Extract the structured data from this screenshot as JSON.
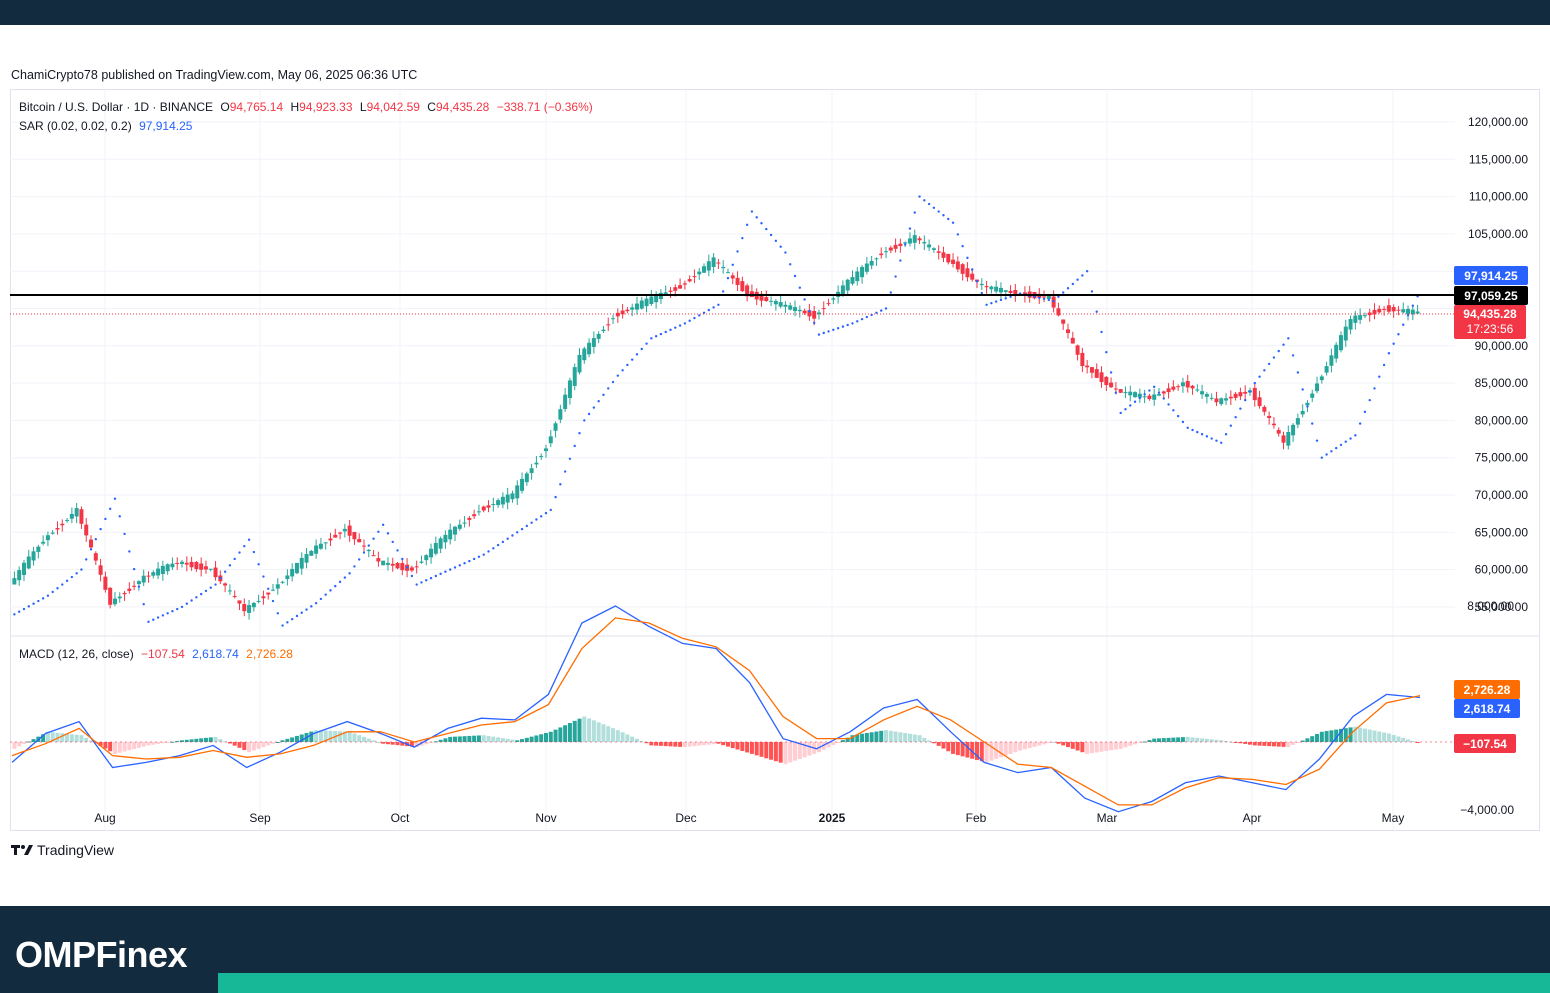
{
  "publisher": "ChamiCrypto78 published on TradingView.com, May 06, 2025 06:36 UTC",
  "brand": {
    "logo_text": "OMPFinex",
    "tv_text": "TradingView"
  },
  "colors": {
    "up": "#26a69a",
    "down": "#f23645",
    "sar": "#2962ff",
    "macd": "#2962ff",
    "signal": "#ff6d00",
    "hline": "#000000",
    "footer": "#132b3f",
    "accent": "#17b897"
  },
  "legend": {
    "symbol": "Bitcoin / U.S. Dollar · 1D · BINANCE",
    "open_label": "O",
    "open": "94,765.14",
    "high_label": "H",
    "high": "94,923.33",
    "low_label": "L",
    "low": "94,042.59",
    "close_label": "C",
    "close": "94,435.28",
    "change": "−338.71 (−0.36%)",
    "sar_name": "SAR (0.02, 0.02, 0.2)",
    "sar_value": "97,914.25",
    "macd_name": "MACD (12, 26, close)",
    "macd_hist": "−107.54",
    "macd_line": "2,618.74",
    "macd_signal": "2,726.28"
  },
  "price_axis": [
    "120,000.00",
    "115,000.00",
    "110,000.00",
    "105,000.00",
    "90,000.00",
    "85,000.00",
    "80,000.00",
    "75,000.00",
    "70,000.00",
    "65,000.00",
    "60,000.00",
    "55,000.00"
  ],
  "macd_axis": [
    "8,000.00",
    "−4,000.00"
  ],
  "price_labels": {
    "sar": "97,914.25",
    "level": "97,059.25",
    "last": "94,435.28",
    "countdown": "17:23:56"
  },
  "macd_labels": {
    "signal": "2,726.28",
    "macd": "2,618.74",
    "hist": "−107.54"
  },
  "time_axis": [
    "Aug",
    "Sep",
    "Oct",
    "Nov",
    "Dec",
    "2025",
    "Feb",
    "Mar",
    "Apr",
    "May"
  ],
  "chart_data": [
    {
      "type": "line",
      "title": "Bitcoin / U.S. Dollar · 1D · BINANCE",
      "ylim": [
        52000,
        122000
      ],
      "x": [
        "2024-07-15",
        "2024-07-22",
        "2024-07-29",
        "2024-08-05",
        "2024-08-12",
        "2024-08-19",
        "2024-08-26",
        "2024-09-02",
        "2024-09-09",
        "2024-09-16",
        "2024-09-23",
        "2024-09-30",
        "2024-10-07",
        "2024-10-14",
        "2024-10-21",
        "2024-10-28",
        "2024-11-04",
        "2024-11-11",
        "2024-11-18",
        "2024-11-25",
        "2024-12-02",
        "2024-12-09",
        "2024-12-16",
        "2024-12-23",
        "2024-12-30",
        "2025-01-06",
        "2025-01-13",
        "2025-01-20",
        "2025-01-27",
        "2025-02-03",
        "2025-02-10",
        "2025-02-17",
        "2025-02-24",
        "2025-03-03",
        "2025-03-10",
        "2025-03-17",
        "2025-03-24",
        "2025-03-31",
        "2025-04-07",
        "2025-04-14",
        "2025-04-21",
        "2025-04-28",
        "2025-05-05"
      ],
      "series": [
        {
          "values": [
            58000,
            64000,
            68000,
            55500,
            59000,
            61000,
            60000,
            54500,
            58000,
            62500,
            65500,
            61000,
            60000,
            64500,
            68000,
            70000,
            76500,
            88500,
            94000,
            96000,
            98000,
            101500,
            97000,
            95500,
            94000,
            98500,
            102500,
            104500,
            101500,
            98000,
            97000,
            96500,
            87500,
            84000,
            83000,
            85000,
            82500,
            84000,
            77000,
            85000,
            93500,
            95000,
            94435
          ]
        },
        {
          "name": "SAR (0.02, 0.02, 0.2)",
          "values": [
            54000,
            56500,
            60000,
            69500,
            53000,
            55000,
            58000,
            64000,
            52500,
            55500,
            59500,
            66000,
            58000,
            60000,
            62000,
            65000,
            68000,
            80000,
            86000,
            91000,
            93000,
            95500,
            108000,
            102500,
            91500,
            93000,
            95000,
            110000,
            106500,
            95500,
            97000,
            96000,
            100000,
            81000,
            84500,
            79000,
            77000,
            85000,
            91000,
            75000,
            78000,
            89000,
            97914
          ]
        }
      ]
    },
    {
      "type": "line",
      "title": "MACD (12, 26, close)",
      "ylim": [
        -5000,
        9000
      ],
      "x": [
        "2024-07-15",
        "2024-07-22",
        "2024-07-29",
        "2024-08-05",
        "2024-08-12",
        "2024-08-19",
        "2024-08-26",
        "2024-09-02",
        "2024-09-09",
        "2024-09-16",
        "2024-09-23",
        "2024-09-30",
        "2024-10-07",
        "2024-10-14",
        "2024-10-21",
        "2024-10-28",
        "2024-11-04",
        "2024-11-11",
        "2024-11-18",
        "2024-11-25",
        "2024-12-02",
        "2024-12-09",
        "2024-12-16",
        "2024-12-23",
        "2024-12-30",
        "2025-01-06",
        "2025-01-13",
        "2025-01-20",
        "2025-01-27",
        "2025-02-03",
        "2025-02-10",
        "2025-02-17",
        "2025-02-24",
        "2025-03-03",
        "2025-03-10",
        "2025-03-17",
        "2025-03-24",
        "2025-03-31",
        "2025-04-07",
        "2025-04-14",
        "2025-04-21",
        "2025-04-28",
        "2025-05-05"
      ],
      "series": [
        {
          "name": "MACD",
          "values": [
            -1200,
            500,
            1200,
            -1500,
            -1200,
            -800,
            -200,
            -1500,
            -600,
            500,
            1200,
            500,
            -300,
            800,
            1400,
            1300,
            2800,
            7000,
            8000,
            6800,
            5800,
            5500,
            3500,
            200,
            -400,
            600,
            2000,
            2500,
            600,
            -1200,
            -1800,
            -1500,
            -3300,
            -4100,
            -3500,
            -2400,
            -2000,
            -2400,
            -2800,
            -1000,
            1500,
            2800,
            2618
          ]
        },
        {
          "name": "Signal",
          "values": [
            -800,
            -100,
            800,
            -800,
            -1000,
            -900,
            -500,
            -900,
            -700,
            -200,
            600,
            600,
            0,
            500,
            1000,
            1200,
            2200,
            5500,
            7300,
            7000,
            6100,
            5600,
            4200,
            1500,
            200,
            200,
            1300,
            2100,
            1300,
            0,
            -1300,
            -1500,
            -2600,
            -3700,
            -3700,
            -2700,
            -2100,
            -2200,
            -2500,
            -1600,
            600,
            2300,
            2726
          ]
        },
        {
          "name": "Histogram",
          "values": [
            -400,
            600,
            400,
            -700,
            -200,
            100,
            300,
            -600,
            100,
            700,
            600,
            -100,
            -300,
            300,
            400,
            100,
            600,
            1500,
            700,
            -200,
            -300,
            -100,
            -700,
            -1300,
            -600,
            400,
            700,
            400,
            -700,
            -1200,
            -500,
            0,
            -700,
            -400,
            200,
            300,
            100,
            -200,
            -300,
            600,
            900,
            500,
            -107
          ]
        }
      ]
    }
  ]
}
